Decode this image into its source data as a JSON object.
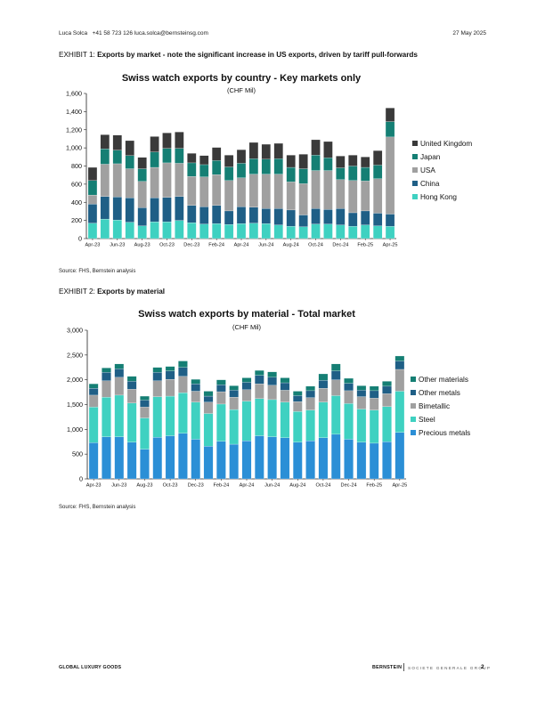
{
  "header": {
    "author": "Luca Solca",
    "contact": "+41 58 723 126  luca.solca@bernsteinsg.com",
    "date": "27 May 2025"
  },
  "exhibit1": {
    "label": "EXHIBIT 1:",
    "caption": "Exports by market - note the significant increase in US exports, driven by tariff pull-forwards",
    "source": "Source: FHS, Bernstein analysis"
  },
  "exhibit2": {
    "label": "EXHIBIT 2:",
    "caption": "Exports by material",
    "source": "Source: FHS, Bernstein analysis"
  },
  "footer": {
    "left": "GLOBAL LUXURY GOODS",
    "brand": "BERNSTEIN",
    "brand_sub": "SOCIETE GENERALE GROUP",
    "page": "2"
  },
  "chart_data": [
    {
      "type": "bar",
      "stacked": true,
      "title": "Swiss watch exports by country - Key markets only",
      "subtitle": "(CHF Mil)",
      "ylim": [
        0,
        1600
      ],
      "yticks": [
        "0",
        "200",
        "400",
        "600",
        "800",
        "1,000",
        "1,200",
        "1,400",
        "1,600"
      ],
      "ytick_values": [
        0,
        200,
        400,
        600,
        800,
        1000,
        1200,
        1400,
        1600
      ],
      "xtick_labels": [
        "Apr-23",
        "Jun-23",
        "Aug-23",
        "Oct-23",
        "Dec-23",
        "Feb-24",
        "Apr-24",
        "Jun-24",
        "Aug-24",
        "Oct-24",
        "Dec-24",
        "Feb-25",
        "Apr-25"
      ],
      "xtick_every": 2,
      "categories": [
        "Apr-23",
        "May-23",
        "Jun-23",
        "Jul-23",
        "Aug-23",
        "Sep-23",
        "Oct-23",
        "Nov-23",
        "Dec-23",
        "Jan-24",
        "Feb-24",
        "Mar-24",
        "Apr-24",
        "May-24",
        "Jun-24",
        "Jul-24",
        "Aug-24",
        "Sep-24",
        "Oct-24",
        "Nov-24",
        "Dec-24",
        "Jan-25",
        "Feb-25",
        "Mar-25",
        "Apr-25"
      ],
      "legend_position": "right",
      "series": [
        {
          "name": "Hong Kong",
          "color": "#3fd1c1",
          "values": [
            170,
            215,
            205,
            180,
            140,
            185,
            185,
            200,
            175,
            160,
            165,
            155,
            165,
            170,
            165,
            150,
            135,
            130,
            160,
            160,
            150,
            135,
            150,
            140,
            135
          ]
        },
        {
          "name": "China",
          "color": "#1f5f86",
          "values": [
            210,
            250,
            255,
            270,
            200,
            265,
            270,
            265,
            190,
            190,
            200,
            150,
            185,
            175,
            165,
            180,
            180,
            130,
            170,
            160,
            180,
            150,
            155,
            140,
            135
          ]
        },
        {
          "name": "USA",
          "color": "#a0a0a0",
          "values": [
            100,
            355,
            365,
            320,
            290,
            335,
            380,
            365,
            320,
            330,
            340,
            335,
            320,
            365,
            380,
            380,
            310,
            345,
            420,
            430,
            320,
            355,
            330,
            380,
            850
          ]
        },
        {
          "name": "Japan",
          "color": "#157f74",
          "values": [
            160,
            170,
            150,
            145,
            140,
            170,
            160,
            165,
            150,
            135,
            155,
            150,
            160,
            170,
            165,
            170,
            160,
            165,
            170,
            140,
            130,
            160,
            150,
            150,
            170
          ]
        },
        {
          "name": "United Kingdom",
          "color": "#3a3a3a",
          "values": [
            145,
            155,
            165,
            165,
            125,
            170,
            170,
            180,
            105,
            100,
            145,
            130,
            150,
            180,
            165,
            170,
            135,
            160,
            170,
            180,
            130,
            120,
            115,
            160,
            150
          ]
        }
      ]
    },
    {
      "type": "bar",
      "stacked": true,
      "title": "Swiss watch exports by material - Total market",
      "subtitle": "(CHF Mil)",
      "ylim": [
        0,
        3000
      ],
      "yticks": [
        "0",
        "500",
        "1,000",
        "1,500",
        "2,000",
        "2,500",
        "3,000"
      ],
      "ytick_values": [
        0,
        500,
        1000,
        1500,
        2000,
        2500,
        3000
      ],
      "xtick_labels": [
        "Apr-23",
        "Jun-23",
        "Aug-23",
        "Oct-23",
        "Dec-23",
        "Feb-24",
        "Apr-24",
        "Jun-24",
        "Aug-24",
        "Oct-24",
        "Dec-24",
        "Feb-25",
        "Apr-25"
      ],
      "xtick_every": 2,
      "categories": [
        "Apr-23",
        "May-23",
        "Jun-23",
        "Jul-23",
        "Aug-23",
        "Sep-23",
        "Oct-23",
        "Nov-23",
        "Dec-23",
        "Jan-24",
        "Feb-24",
        "Mar-24",
        "Apr-24",
        "May-24",
        "Jun-24",
        "Jul-24",
        "Aug-24",
        "Sep-24",
        "Oct-24",
        "Nov-24",
        "Dec-24",
        "Jan-25",
        "Feb-25",
        "Mar-25",
        "Apr-25"
      ],
      "legend_position": "right",
      "series": [
        {
          "name": "Precious metals",
          "color": "#2b8fd6",
          "values": [
            730,
            850,
            850,
            740,
            600,
            840,
            870,
            920,
            800,
            660,
            760,
            700,
            770,
            870,
            850,
            830,
            740,
            770,
            830,
            900,
            800,
            740,
            720,
            750,
            940
          ]
        },
        {
          "name": "Steel",
          "color": "#3fd1c1",
          "values": [
            720,
            800,
            840,
            790,
            630,
            820,
            800,
            820,
            750,
            660,
            750,
            700,
            800,
            750,
            750,
            720,
            620,
            620,
            720,
            780,
            720,
            670,
            670,
            710,
            830
          ]
        },
        {
          "name": "Bimetallic",
          "color": "#a0a0a0",
          "values": [
            240,
            330,
            360,
            280,
            220,
            320,
            340,
            330,
            220,
            230,
            250,
            250,
            230,
            300,
            290,
            240,
            200,
            250,
            280,
            320,
            260,
            250,
            240,
            260,
            440
          ]
        },
        {
          "name": "Other metals",
          "color": "#1f5f86",
          "values": [
            140,
            170,
            170,
            160,
            140,
            170,
            170,
            180,
            150,
            120,
            140,
            140,
            150,
            170,
            160,
            150,
            120,
            140,
            160,
            180,
            150,
            130,
            150,
            150,
            170
          ]
        },
        {
          "name": "Other materials",
          "color": "#157f74",
          "values": [
            90,
            90,
            100,
            100,
            80,
            100,
            90,
            130,
            90,
            100,
            100,
            90,
            90,
            100,
            110,
            100,
            90,
            90,
            130,
            140,
            100,
            90,
            90,
            100,
            100
          ]
        }
      ]
    }
  ]
}
